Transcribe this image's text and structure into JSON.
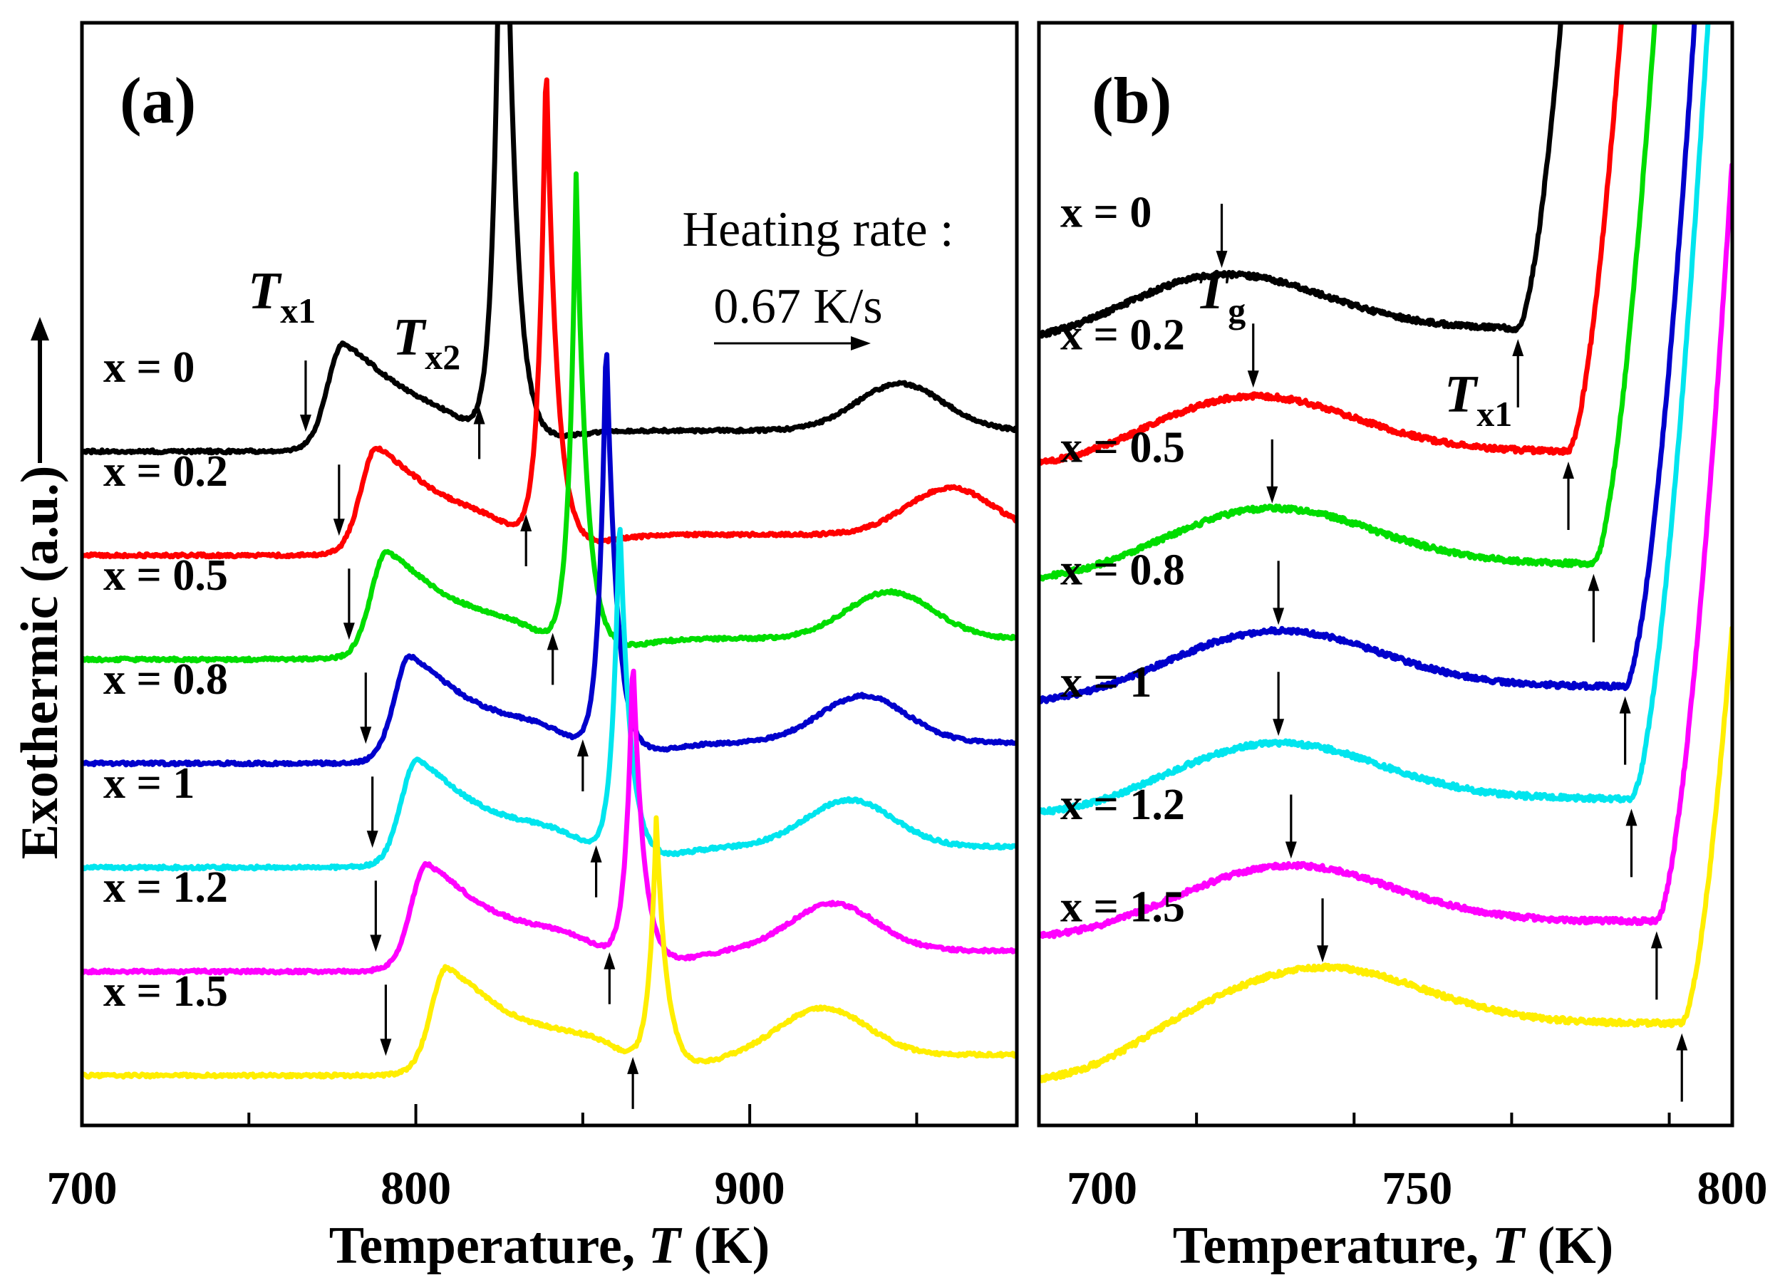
{
  "figure": {
    "ylabel": "Exothermic (a.u.)",
    "xlabel_prefix": "Temperature, ",
    "xlabel_symbol": "T",
    "xlabel_unit": " (K)"
  },
  "chart_data": [
    {
      "panel": "(a)",
      "type": "line",
      "xlim": [
        700,
        980
      ],
      "ylim": [
        -0.6,
        10
      ],
      "xticks": [
        700,
        800,
        900
      ],
      "xlabel": "Temperature, T (K)",
      "ylabel": "Exothermic (a.u.)",
      "note_line1": "Heating rate :",
      "note_line2": "0.67 K/s",
      "annotations": {
        "tx1_main": "T",
        "tx1_sub": "x1",
        "tx2_main": "T",
        "tx2_sub": "x2"
      },
      "series": [
        {
          "name": "x = 0",
          "color": "#000000",
          "baseline": 6.0,
          "tx1": 767,
          "peak1": 778,
          "tx2": 819,
          "peak2": 826,
          "peak2_height": 8.0,
          "peak3": 945,
          "peak3_height": 0.1
        },
        {
          "name": "x = 0.2",
          "color": "#ff0000",
          "baseline": 5.0,
          "tx1": 777,
          "peak1": 788,
          "tx2": 833,
          "peak2": 839,
          "peak2_height": 4.8,
          "peak3": 960,
          "peak3_height": 0.1
        },
        {
          "name": "x = 0.5",
          "color": "#00dd00",
          "baseline": 4.0,
          "tx1": 780,
          "peak1": 791,
          "tx2": 841,
          "peak2": 848,
          "peak2_height": 4.6,
          "peak3": 942,
          "peak3_height": 0.1
        },
        {
          "name": "x = 0.8",
          "color": "#0000cc",
          "baseline": 3.0,
          "tx1": 785,
          "peak1": 798,
          "tx2": 850,
          "peak2": 857,
          "peak2_height": 4.1,
          "peak3": 934,
          "peak3_height": 0.1
        },
        {
          "name": "x = 1",
          "color": "#00e5ee",
          "baseline": 2.0,
          "tx1": 787,
          "peak1": 800,
          "tx2": 854,
          "peak2": 861,
          "peak2_height": 3.4,
          "peak3": 930,
          "peak3_height": 0.1
        },
        {
          "name": "x = 1.2",
          "color": "#ff00ff",
          "baseline": 1.0,
          "tx1": 788,
          "peak1": 803,
          "tx2": 858,
          "peak2": 865,
          "peak2_height": 3.0,
          "peak3": 925,
          "peak3_height": 0.1
        },
        {
          "name": "x = 1.5",
          "color": "#ffee00",
          "baseline": 0.0,
          "tx1": 791,
          "peak1": 809,
          "tx2": 865,
          "peak2": 872,
          "peak2_height": 2.4,
          "peak3": 922,
          "peak3_height": 0.1
        }
      ]
    },
    {
      "panel": "(b)",
      "type": "line",
      "xlim": [
        690,
        800
      ],
      "ylim": [
        -0.8,
        10
      ],
      "xticks": [
        700,
        750,
        800
      ],
      "xlabel": "Temperature, T (K)",
      "ylabel": "Exothermic (a.u.)",
      "annotations": {
        "tg_main": "T",
        "tg_sub": "g",
        "tx1_main": "T",
        "tx1_sub": "x1"
      },
      "series": [
        {
          "name": "x = 0",
          "color": "#000000",
          "baseline": 7.0,
          "tg": 719,
          "tx1": 766
        },
        {
          "name": "x = 0.2",
          "color": "#ff0000",
          "baseline": 5.8,
          "tg": 724,
          "tx1": 774
        },
        {
          "name": "x = 0.5",
          "color": "#00dd00",
          "baseline": 4.7,
          "tg": 727,
          "tx1": 778
        },
        {
          "name": "x = 0.8",
          "color": "#0000cc",
          "baseline": 3.5,
          "tg": 728,
          "tx1": 783
        },
        {
          "name": "x = 1",
          "color": "#00e5ee",
          "baseline": 2.4,
          "tg": 728,
          "tx1": 784
        },
        {
          "name": "x = 1.2",
          "color": "#ff00ff",
          "baseline": 1.2,
          "tg": 730,
          "tx1": 788
        },
        {
          "name": "x = 1.5",
          "color": "#ffee00",
          "baseline": 0.2,
          "tg": 735,
          "tx1": 792
        }
      ]
    }
  ]
}
